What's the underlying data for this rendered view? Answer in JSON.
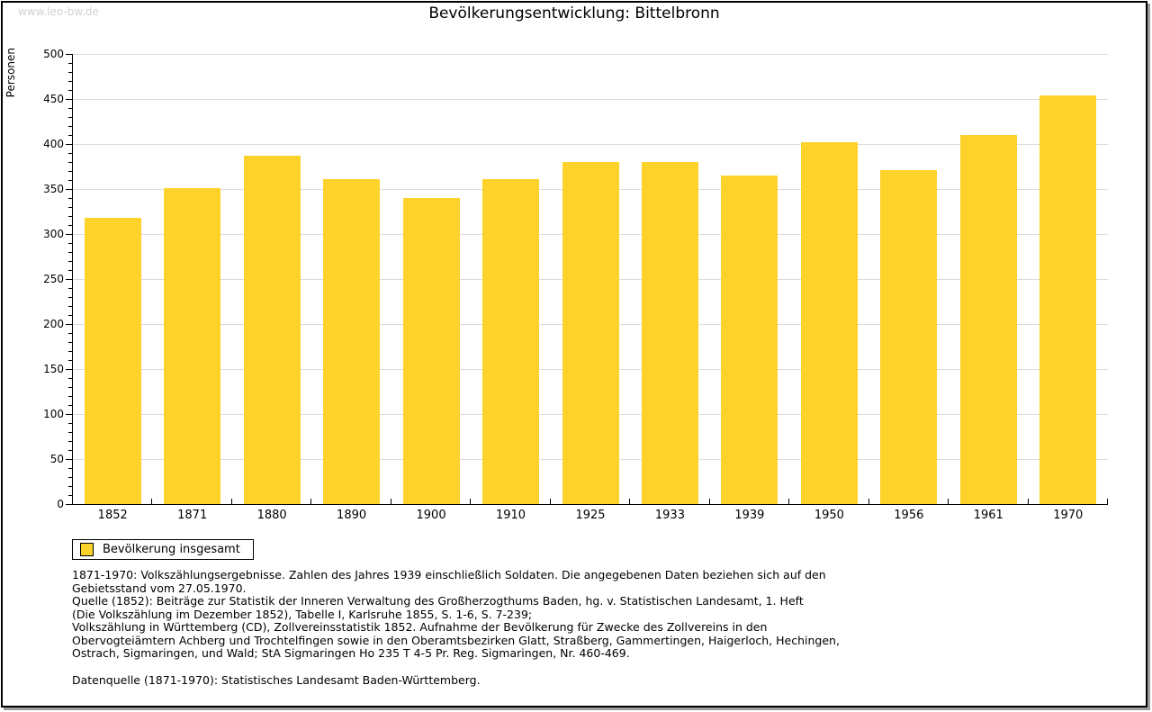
{
  "header": {
    "watermark": "www.leo-bw.de",
    "title": "Bevölkerungsentwicklung: Bittelbronn"
  },
  "chart_data": {
    "type": "bar",
    "title": "Bevölkerungsentwicklung: Bittelbronn",
    "xlabel": "",
    "ylabel": "Personen",
    "categories": [
      "1852",
      "1871",
      "1880",
      "1890",
      "1900",
      "1910",
      "1925",
      "1933",
      "1939",
      "1950",
      "1956",
      "1961",
      "1970"
    ],
    "series": [
      {
        "name": "Bevölkerung insgesamt",
        "values": [
          318,
          351,
          387,
          361,
          340,
          361,
          380,
          380,
          365,
          402,
          371,
          410,
          454
        ]
      }
    ],
    "ylim": [
      0,
      500
    ],
    "ytick_step": 50,
    "y_minor_tick_step": 10,
    "grid": "horizontal-major",
    "legend_position": "bottom-left",
    "colors": {
      "bar": "#FDD32B",
      "grid": "#DCDCDC",
      "axis": "#000000",
      "watermark": "#D2D2D2"
    }
  },
  "legend": {
    "items": [
      {
        "label": "Bevölkerung insgesamt",
        "swatch_color": "#FDD32B"
      }
    ]
  },
  "notes": {
    "lines": [
      "1871-1970: Volkszählungsergebnisse. Zahlen des Jahres 1939 einschließlich Soldaten. Die angegebenen Daten beziehen sich auf den",
      "Gebietsstand vom 27.05.1970.",
      "Quelle (1852): Beiträge zur Statistik der Inneren Verwaltung des Großherzogthums Baden, hg. v. Statistischen Landesamt, 1. Heft",
      "(Die Volkszählung im Dezember 1852), Tabelle I, Karlsruhe 1855, S. 1-6, S. 7-239;",
      "Volkszählung in Württemberg (CD), Zollvereinsstatistik 1852. Aufnahme der Bevölkerung für Zwecke des Zollvereins in den",
      "Obervogteiämtern Achberg und Trochtelfingen sowie in den Oberamtsbezirken Glatt, Straßberg, Gammertingen, Haigerloch, Hechingen,",
      "Ostrach, Sigmaringen, und Wald; StA Sigmaringen Ho 235 T 4-5 Pr. Reg. Sigmaringen, Nr. 460-469."
    ],
    "datasource": "Datenquelle (1871-1970): Statistisches Landesamt Baden-Württemberg."
  }
}
